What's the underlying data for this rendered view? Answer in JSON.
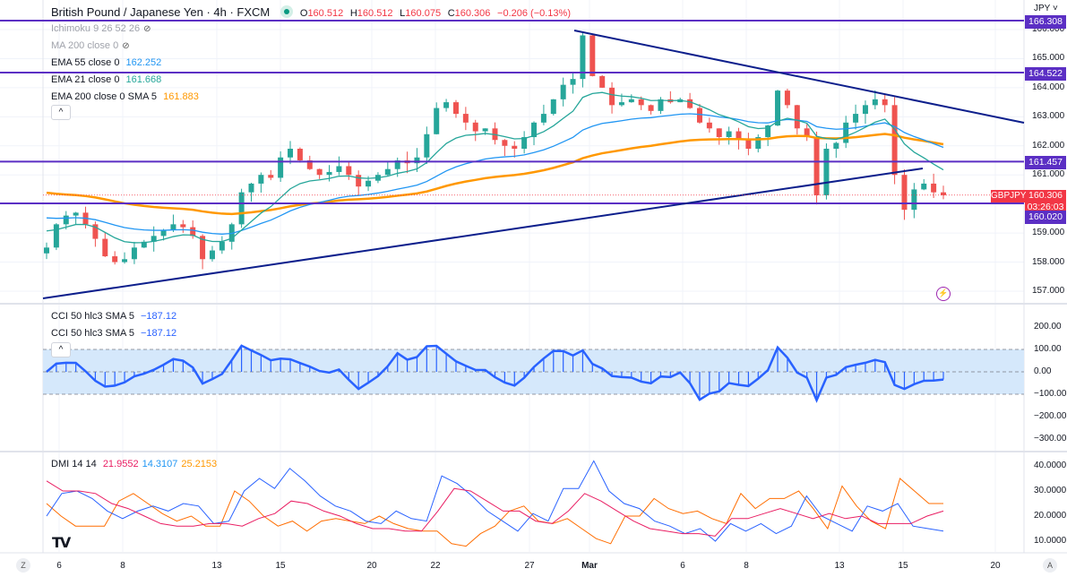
{
  "header": {
    "symbol": "British Pound / Japanese Yen · 4h · FXCM",
    "o_label": "O",
    "o": "160.512",
    "h_label": "H",
    "h": "160.512",
    "l_label": "L",
    "l": "160.075",
    "c_label": "C",
    "c": "160.306",
    "change": "−0.206 (−0.13%)"
  },
  "indicators": [
    {
      "name": "Ichimoku 9 26 52 26",
      "value": ""
    },
    {
      "name": "MA 200 close 0",
      "value": ""
    },
    {
      "name": "EMA 55 close 0",
      "value": "162.252"
    },
    {
      "name": "EMA 21 close 0",
      "value": "161.668"
    },
    {
      "name": "EMA 200 close 0 SMA 5",
      "value": "161.883"
    }
  ],
  "cci": [
    {
      "name": "CCI 50 hlc3 SMA 5",
      "value": "−187.12"
    },
    {
      "name": "CCI 50 hlc3 SMA 5",
      "value": "−187.12"
    }
  ],
  "dmi": {
    "name": "DMI 14 14",
    "adx": "21.9552",
    "plus": "14.3107",
    "minus": "25.2153"
  },
  "price_axis": {
    "currency": "JPY",
    "ticks": [
      "166.000",
      "165.000",
      "164.000",
      "163.000",
      "162.000",
      "161.000",
      "159.000",
      "158.000",
      "157.000"
    ],
    "levels": [
      "166.308",
      "164.522",
      "161.457",
      "160.020"
    ],
    "current": "160.306",
    "countdown": "03:26:03",
    "symbol_tag": "GBPJPY"
  },
  "cci_axis": {
    "ticks": [
      "200.00",
      "100.00",
      "0.00",
      "−100.00",
      "−200.00",
      "−300.00"
    ]
  },
  "dmi_axis": {
    "ticks": [
      "40.0000",
      "30.0000",
      "20.0000",
      "10.0000"
    ]
  },
  "time_axis": {
    "labels": [
      "6",
      "8",
      "13",
      "15",
      "20",
      "22",
      "27",
      "Mar",
      "6",
      "8",
      "13",
      "15",
      "20"
    ]
  },
  "buttons": {
    "collapse": "^",
    "z": "Z",
    "a": "A",
    "logo": "TV"
  },
  "colors": {
    "up": "#26a69a",
    "down": "#ef5350",
    "level": "#5b2fc4",
    "trend": "#0d1f8c",
    "ema55": "#2196f3",
    "ema21": "#26a69a",
    "ema200": "#ff9800",
    "cci": "#2962ff",
    "adx": "#e91e63",
    "plus": "#2962ff",
    "minus": "#ff6d00"
  },
  "chart_data": {
    "type": "candlestick",
    "closes": [
      158.5,
      159.3,
      159.6,
      159.7,
      159.3,
      158.8,
      158.2,
      158.0,
      158.1,
      158.5,
      158.7,
      158.9,
      159.1,
      159.3,
      159.2,
      158.9,
      158.1,
      158.4,
      158.7,
      159.3,
      160.4,
      160.7,
      161.0,
      160.9,
      161.6,
      161.9,
      161.5,
      161.2,
      161.0,
      161.1,
      161.3,
      161.0,
      160.6,
      160.8,
      161.0,
      161.2,
      161.5,
      161.4,
      161.6,
      162.4,
      163.3,
      163.5,
      163.1,
      162.8,
      162.5,
      162.6,
      162.2,
      162.0,
      161.9,
      162.3,
      162.8,
      163.1,
      163.6,
      164.1,
      164.3,
      165.8,
      164.4,
      164.0,
      163.4,
      163.5,
      163.6,
      163.4,
      163.2,
      163.6,
      163.5,
      163.6,
      163.3,
      162.8,
      162.6,
      162.3,
      162.5,
      162.2,
      161.9,
      162.3,
      162.7,
      163.9,
      163.4,
      162.6,
      162.3,
      160.3,
      161.9,
      162.1,
      162.8,
      163.1,
      163.4,
      163.6,
      163.4,
      161.0,
      159.8,
      160.5,
      160.7,
      160.4,
      160.3
    ],
    "dmi_adx": [
      34,
      30,
      30,
      29,
      25,
      23,
      20,
      17,
      16,
      16,
      17,
      17,
      16,
      19,
      21,
      26,
      25,
      22,
      20,
      17,
      15,
      15,
      14,
      14,
      22,
      31,
      30,
      26,
      22,
      22,
      18,
      17,
      22,
      29,
      26,
      22,
      18,
      15,
      14,
      13,
      13,
      12,
      19,
      19,
      21,
      23,
      21,
      19,
      21,
      19,
      20,
      17,
      17,
      17,
      20,
      22
    ],
    "dmi_plus": [
      20,
      29,
      30,
      27,
      22,
      19,
      22,
      24,
      22,
      25,
      24,
      17,
      18,
      30,
      35,
      31,
      39,
      34,
      28,
      24,
      22,
      18,
      17,
      22,
      19,
      18,
      36,
      33,
      28,
      22,
      18,
      14,
      21,
      18,
      31,
      31,
      42,
      30,
      25,
      23,
      18,
      16,
      13,
      15,
      10,
      17,
      14,
      17,
      13,
      16,
      28,
      20,
      17,
      14,
      24,
      22,
      25,
      16,
      15,
      14
    ],
    "dmi_minus": [
      25,
      20,
      16,
      16,
      16,
      26,
      29,
      25,
      21,
      18,
      20,
      16,
      16,
      30,
      26,
      20,
      16,
      18,
      14,
      18,
      19,
      18,
      17,
      20,
      17,
      15,
      14,
      14,
      9,
      8,
      13,
      16,
      22,
      24,
      18,
      17,
      19,
      15,
      11,
      9,
      20,
      20,
      27,
      23,
      21,
      22,
      19,
      17,
      29,
      23,
      27,
      27,
      30,
      23,
      15,
      32,
      24,
      18,
      15,
      35,
      30,
      25,
      25
    ],
    "price_range": [
      156.6,
      166.6
    ],
    "cci_range": [
      -330,
      260
    ],
    "dmi_range": [
      5,
      45
    ]
  }
}
